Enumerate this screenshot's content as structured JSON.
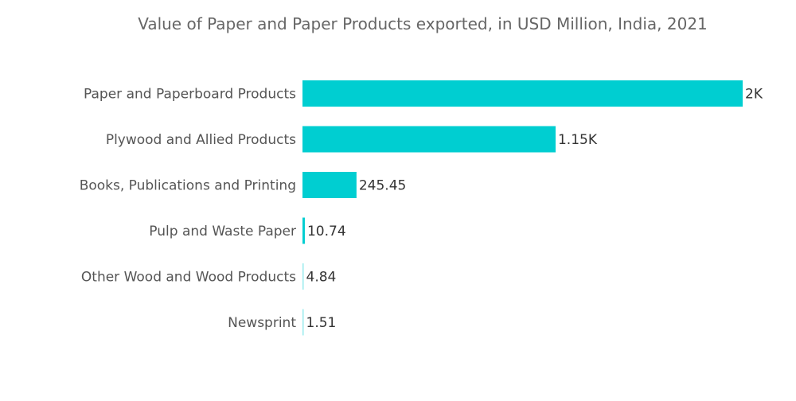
{
  "chart_data": {
    "type": "bar",
    "orientation": "horizontal",
    "title": "Value of Paper and Paper Products exported, in USD Million, India, 2021",
    "categories": [
      "Paper and Paperboard Products",
      "Plywood and Allied Products",
      "Books, Publications and Printing",
      "Pulp and Waste Paper",
      "Other Wood and Wood Products",
      "Newsprint"
    ],
    "values": [
      2000,
      1150,
      245.45,
      10.74,
      4.84,
      1.51
    ],
    "data_labels": [
      "2K",
      "1.15K",
      "245.45",
      "10.74",
      "4.84",
      "1.51"
    ],
    "xlim": [
      0,
      2000
    ],
    "grid": false,
    "bar_color": "#00CED1"
  }
}
